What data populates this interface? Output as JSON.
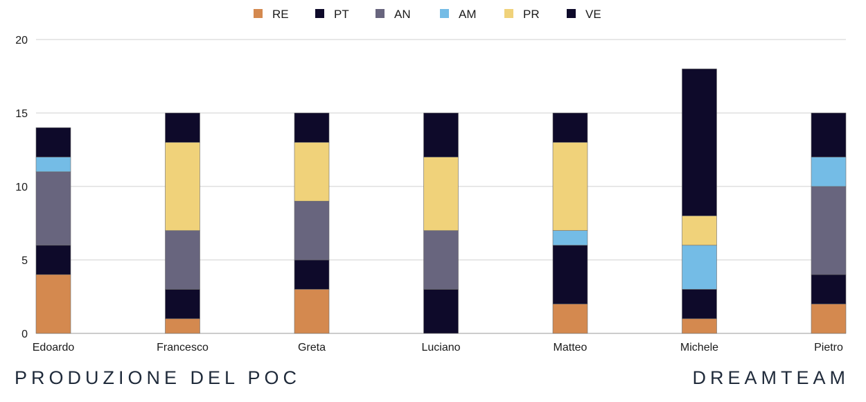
{
  "chart_data": {
    "type": "bar",
    "stacked": true,
    "categories": [
      "Edoardo",
      "Francesco",
      "Greta",
      "Luciano",
      "Matteo",
      "Michele",
      "Pietro"
    ],
    "series": [
      {
        "name": "RE",
        "color": "#d4894f",
        "values": [
          4,
          1,
          3,
          0,
          2,
          1,
          2
        ]
      },
      {
        "name": "PT",
        "color": "#0e0a2a",
        "values": [
          2,
          2,
          2,
          3,
          4,
          2,
          2
        ]
      },
      {
        "name": "AN",
        "color": "#68657e",
        "values": [
          5,
          4,
          4,
          4,
          0,
          0,
          6
        ]
      },
      {
        "name": "AM",
        "color": "#74bce6",
        "values": [
          1,
          0,
          0,
          0,
          1,
          3,
          2
        ]
      },
      {
        "name": "PR",
        "color": "#f0d27a",
        "values": [
          0,
          6,
          4,
          5,
          6,
          2,
          0
        ]
      },
      {
        "name": "VE",
        "color": "#0e0a2a",
        "values": [
          2,
          2,
          2,
          3,
          2,
          10,
          3
        ]
      }
    ],
    "ylim": [
      0,
      20
    ],
    "yticks": [
      0,
      5,
      10,
      15,
      20
    ],
    "grid": true,
    "legend_position": "top-center"
  },
  "footer": {
    "left": "PRODUZIONE DEL POC",
    "right": "DREAMTEAM"
  }
}
